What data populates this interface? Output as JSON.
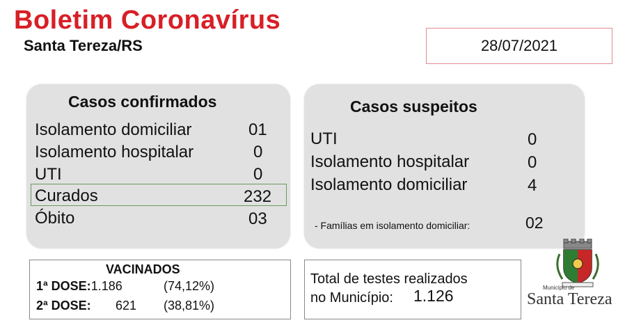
{
  "header": {
    "title": "Boletim Coronavírus",
    "subtitle": "Santa Tereza/RS",
    "date": "28/07/2021"
  },
  "confirmed": {
    "title": "Casos confirmados",
    "rows": [
      {
        "label": "Isolamento domiciliar",
        "value": "01"
      },
      {
        "label": "Isolamento hospitalar",
        "value": "0"
      },
      {
        "label": "UTI",
        "value": "0"
      },
      {
        "label": "Curados",
        "value": "232"
      },
      {
        "label": "Óbito",
        "value": "03"
      }
    ]
  },
  "suspected": {
    "title": "Casos suspeitos",
    "rows": [
      {
        "label": "UTI",
        "value": "0"
      },
      {
        "label": "Isolamento hospitalar",
        "value": "0"
      },
      {
        "label": "Isolamento domiciliar",
        "value": "4"
      }
    ],
    "families_label": "- Famílias em isolamento domiciliar:",
    "families_value": "02"
  },
  "vaccinated": {
    "title": "VACINADOS",
    "dose1_label": "1ª DOSE:",
    "dose1_value": "1.186",
    "dose1_pct": "(74,12%)",
    "dose2_label": "2ª DOSE:",
    "dose2_value": "621",
    "dose2_pct": "(38,81%)"
  },
  "tests": {
    "line1": "Total de testes realizados",
    "line2": "no Município:",
    "value": "1.126"
  },
  "logo": {
    "small_caption": "Município de",
    "caption": "Santa Tereza"
  },
  "colors": {
    "title_red": "#d81f26",
    "panel_gray": "#e1e1e1",
    "highlight_green": "#6a9a5e"
  }
}
